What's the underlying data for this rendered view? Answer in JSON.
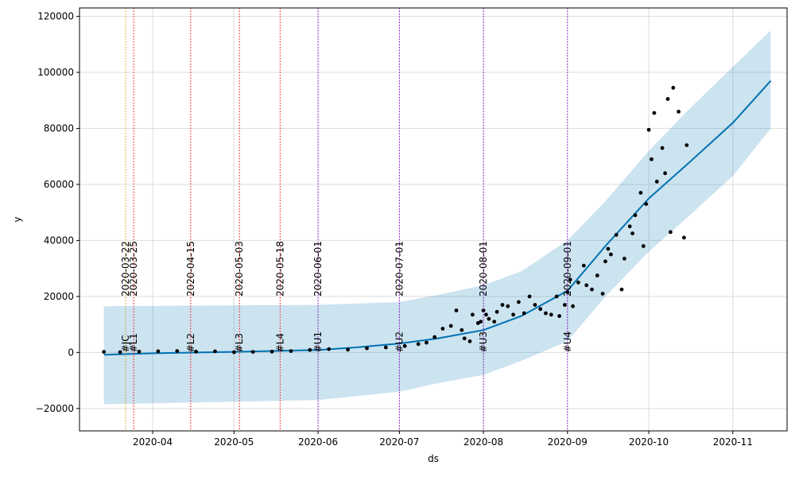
{
  "chart_data": {
    "type": "line",
    "title": "",
    "xlabel": "ds",
    "ylabel": "y",
    "xlim": [
      "2020-03-05",
      "2020-11-21"
    ],
    "ylim": [
      -28000,
      123000
    ],
    "grid": true,
    "x_ticks": [
      "2020-04-01",
      "2020-05-01",
      "2020-06-01",
      "2020-07-01",
      "2020-08-01",
      "2020-09-01",
      "2020-10-01",
      "2020-11-01"
    ],
    "x_tick_labels": [
      "2020-04",
      "2020-05",
      "2020-06",
      "2020-07",
      "2020-08",
      "2020-09",
      "2020-10",
      "2020-11"
    ],
    "y_ticks": [
      -20000,
      0,
      20000,
      40000,
      60000,
      80000,
      100000,
      120000
    ],
    "y_tick_labels": [
      "−20000",
      "0",
      "20000",
      "40000",
      "60000",
      "80000",
      "100000",
      "120000"
    ],
    "colors": {
      "forecast_line": "#0072b2",
      "interval_fill": "#0072b2",
      "points": "#000000",
      "grid": "#dddddd",
      "lockdown_line": "#ff0000",
      "unlock_line": "#9400d3",
      "curfew_line": "#c8a000"
    },
    "series": [
      {
        "kind": "forecast",
        "x": [
          "2020-03-14",
          "2020-04-01",
          "2020-05-01",
          "2020-06-01",
          "2020-06-15",
          "2020-07-01",
          "2020-07-15",
          "2020-08-01",
          "2020-08-15",
          "2020-09-01",
          "2020-09-15",
          "2020-10-01",
          "2020-10-15",
          "2020-11-01",
          "2020-11-15"
        ],
        "y": [
          -800,
          -300,
          200,
          900,
          1800,
          3200,
          5000,
          8000,
          13000,
          22000,
          38000,
          55000,
          67000,
          82000,
          97000
        ]
      },
      {
        "kind": "interval",
        "x": [
          "2020-03-14",
          "2020-06-01",
          "2020-07-01",
          "2020-07-15",
          "2020-08-01",
          "2020-08-15",
          "2020-09-01",
          "2020-09-15",
          "2020-10-01",
          "2020-10-15",
          "2020-11-01",
          "2020-11-15"
        ],
        "upper": [
          16500,
          17000,
          18000,
          20500,
          24000,
          29000,
          40000,
          54000,
          72000,
          86000,
          102000,
          115000
        ],
        "lower": [
          -18500,
          -17000,
          -14000,
          -11000,
          -8000,
          -3000,
          4000,
          20000,
          36000,
          48000,
          63000,
          80000
        ]
      },
      {
        "kind": "observed",
        "x": [
          "2020-03-14",
          "2020-03-20",
          "2020-03-27",
          "2020-04-03",
          "2020-04-10",
          "2020-04-17",
          "2020-04-24",
          "2020-05-01",
          "2020-05-08",
          "2020-05-15",
          "2020-05-22",
          "2020-05-29",
          "2020-06-05",
          "2020-06-12",
          "2020-06-19",
          "2020-06-26",
          "2020-07-03",
          "2020-07-08",
          "2020-07-11",
          "2020-07-14",
          "2020-07-17",
          "2020-07-20",
          "2020-07-22",
          "2020-07-24",
          "2020-07-25",
          "2020-07-27",
          "2020-07-28",
          "2020-07-30",
          "2020-07-31",
          "2020-08-01",
          "2020-08-02",
          "2020-08-03",
          "2020-08-05",
          "2020-08-06",
          "2020-08-08",
          "2020-08-10",
          "2020-08-12",
          "2020-08-14",
          "2020-08-16",
          "2020-08-18",
          "2020-08-20",
          "2020-08-22",
          "2020-08-24",
          "2020-08-26",
          "2020-08-28",
          "2020-08-29",
          "2020-08-31",
          "2020-09-01",
          "2020-09-02",
          "2020-09-03",
          "2020-09-05",
          "2020-09-07",
          "2020-09-08",
          "2020-09-10",
          "2020-09-12",
          "2020-09-14",
          "2020-09-15",
          "2020-09-16",
          "2020-09-17",
          "2020-09-19",
          "2020-09-21",
          "2020-09-22",
          "2020-09-24",
          "2020-09-25",
          "2020-09-26",
          "2020-09-28",
          "2020-09-29",
          "2020-09-30",
          "2020-10-01",
          "2020-10-02",
          "2020-10-03",
          "2020-10-04",
          "2020-10-06",
          "2020-10-07",
          "2020-10-08",
          "2020-10-09",
          "2020-10-10",
          "2020-10-12",
          "2020-10-14",
          "2020-10-15"
        ],
        "y": [
          200,
          100,
          300,
          400,
          500,
          300,
          400,
          100,
          200,
          300,
          500,
          900,
          1200,
          1000,
          1500,
          1800,
          2300,
          3000,
          3500,
          5500,
          8500,
          9500,
          15000,
          8000,
          5000,
          4000,
          13500,
          10500,
          11000,
          15000,
          13500,
          12000,
          11000,
          14500,
          17000,
          16500,
          13500,
          18000,
          14000,
          20000,
          17000,
          15500,
          14000,
          13500,
          20000,
          13000,
          17000,
          21500,
          26000,
          16500,
          25000,
          31000,
          24000,
          22500,
          27500,
          21000,
          32500,
          37000,
          35000,
          42000,
          22500,
          33500,
          45000,
          42500,
          49000,
          57000,
          38000,
          53000,
          79500,
          69000,
          85500,
          61000,
          73000,
          64000,
          90500,
          43000,
          94500,
          86000,
          41000,
          74000
        ]
      }
    ],
    "event_lines": [
      {
        "date": "2020-03-22",
        "label": "#JC",
        "annotation": "2020-03-22",
        "kind": "curfew"
      },
      {
        "date": "2020-03-25",
        "label": "#L1",
        "annotation": "2020-03-25",
        "kind": "lockdown"
      },
      {
        "date": "2020-04-15",
        "label": "#L2",
        "annotation": "2020-04-15",
        "kind": "lockdown"
      },
      {
        "date": "2020-05-03",
        "label": "#L3",
        "annotation": "2020-05-03",
        "kind": "lockdown"
      },
      {
        "date": "2020-05-18",
        "label": "#L4",
        "annotation": "2020-05-18",
        "kind": "lockdown"
      },
      {
        "date": "2020-06-01",
        "label": "#U1",
        "annotation": "2020-06-01",
        "kind": "unlock"
      },
      {
        "date": "2020-07-01",
        "label": "#U2",
        "annotation": "2020-07-01",
        "kind": "unlock"
      },
      {
        "date": "2020-08-01",
        "label": "#U3",
        "annotation": "2020-08-01",
        "kind": "unlock"
      },
      {
        "date": "2020-09-01",
        "label": "#U4",
        "annotation": "2020-09-01",
        "kind": "unlock"
      }
    ]
  }
}
